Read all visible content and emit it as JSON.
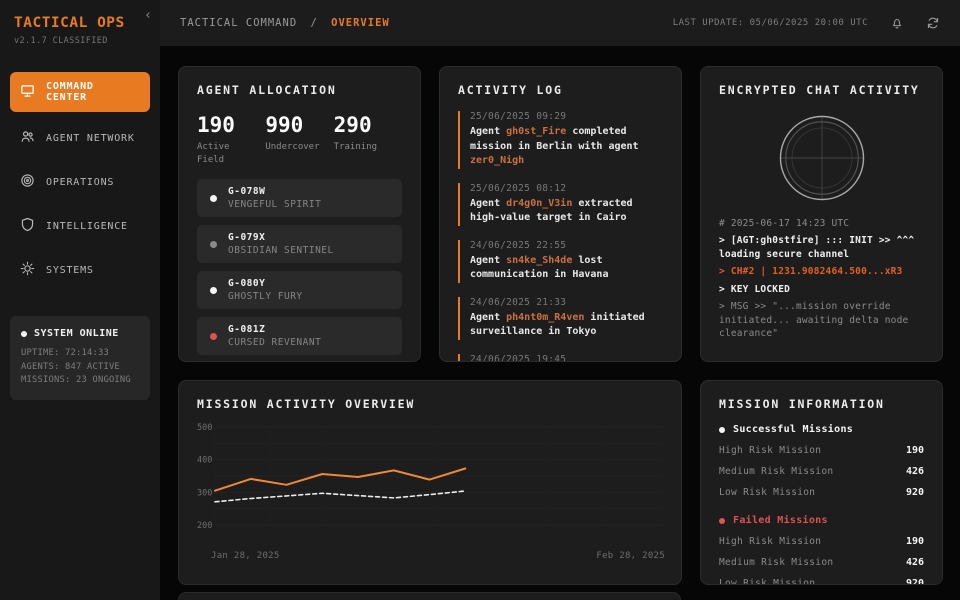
{
  "accent": "#e87a22",
  "sidebar": {
    "brand": "TACTICAL OPS",
    "version": "v2.1.7 CLASSIFIED",
    "collapse_icon": "‹",
    "items": [
      {
        "label": "COMMAND CENTER",
        "icon": "monitor-icon",
        "active": true
      },
      {
        "label": "AGENT NETWORK",
        "icon": "users-icon",
        "active": false
      },
      {
        "label": "OPERATIONS",
        "icon": "target-icon",
        "active": false
      },
      {
        "label": "INTELLIGENCE",
        "icon": "shield-icon",
        "active": false
      },
      {
        "label": "SYSTEMS",
        "icon": "gear-icon",
        "active": false
      }
    ],
    "system_status": {
      "title": "SYSTEM ONLINE",
      "status_color": "#f5f5f5",
      "lines": [
        "UPTIME: 72:14:33",
        "AGENTS: 847 ACTIVE",
        "MISSIONS: 23 ONGOING"
      ]
    }
  },
  "topbar": {
    "breadcrumb_root": "TACTICAL COMMAND",
    "breadcrumb_sep": "/",
    "breadcrumb_current": "OVERVIEW",
    "last_update": "LAST UPDATE: 05/06/2025 20:00 UTC",
    "icons": [
      "bell-icon",
      "refresh-icon"
    ]
  },
  "agent_allocation": {
    "title": "AGENT ALLOCATION",
    "stats": [
      {
        "value": "190",
        "label": "Active Field"
      },
      {
        "value": "990",
        "label": "Undercover"
      },
      {
        "value": "290",
        "label": "Training"
      }
    ],
    "agents": [
      {
        "code": "G-078W",
        "name": "VENGEFUL SPIRIT",
        "status_color": "#f5f5f5"
      },
      {
        "code": "G-079X",
        "name": "OBSIDIAN SENTINEL",
        "status_color": "#8a8a8a"
      },
      {
        "code": "G-080Y",
        "name": "GHOSTLY FURY",
        "status_color": "#f5f5f5"
      },
      {
        "code": "G-081Z",
        "name": "CURSED REVENANT",
        "status_color": "#e05252"
      }
    ]
  },
  "activity_log": {
    "title": "ACTIVITY LOG",
    "entries": [
      {
        "time": "25/06/2025 09:29",
        "s0": "Agent ",
        "a1": "gh0st_Fire",
        "s1": " completed mission in Berlin with agent ",
        "a2": "zer0_Nigh",
        "s2": ""
      },
      {
        "time": "25/06/2025 08:12",
        "s0": "Agent ",
        "a1": "dr4g0n_V3in",
        "s1": " extracted high-value target in Cairo",
        "a2": "",
        "s2": ""
      },
      {
        "time": "24/06/2025 22:55",
        "s0": "Agent ",
        "a1": "sn4ke_Sh4de",
        "s1": " lost communication in Havana",
        "a2": "",
        "s2": ""
      },
      {
        "time": "24/06/2025 21:33",
        "s0": "Agent ",
        "a1": "ph4nt0m_R4ven",
        "s1": " initiated surveillance in Tokyo",
        "a2": "",
        "s2": ""
      },
      {
        "time": "24/06/2025 19:45",
        "s0": "",
        "a1": "",
        "s1": "",
        "a2": "",
        "s2": ""
      }
    ]
  },
  "encrypted_chat": {
    "title": "ENCRYPTED CHAT ACTIVITY",
    "radar_icon": "radar-dial-icon",
    "lines": [
      {
        "style": "dim",
        "text": "# 2025-06-17 14:23 UTC"
      },
      {
        "style": "bright",
        "text": "> [AGT:gh0stfire] ::: INIT >> ^^^ loading secure channel"
      },
      {
        "style": "orange",
        "text": "> CH#2 | 1231.9082464.500...xR3"
      },
      {
        "style": "bright",
        "text": "> KEY LOCKED"
      },
      {
        "style": "dim",
        "text": "> MSG >> \"...mission override initiated... awaiting delta node clearance\""
      }
    ]
  },
  "chart_data": {
    "type": "line",
    "title": "MISSION ACTIVITY OVERVIEW",
    "xlabel": "",
    "ylabel": "",
    "x_start_label": "Jan 28, 2025",
    "x_end_label": "Feb 28, 2025",
    "ylim": [
      200,
      500
    ],
    "yticks": [
      200,
      300,
      400,
      500
    ],
    "grid": true,
    "legend": "none",
    "data_span_fraction": 0.56,
    "series": [
      {
        "name": "solid-orange",
        "color": "#ed8936",
        "dash": "",
        "width": 2,
        "values": [
          305,
          341,
          323,
          356,
          347,
          367,
          339,
          373
        ]
      },
      {
        "name": "dashed-white",
        "color": "#ececec",
        "dash": "4 3",
        "width": 1.6,
        "values": [
          271,
          281,
          289,
          297,
          290,
          283,
          293,
          304
        ]
      }
    ]
  },
  "mission_info": {
    "title": "MISSION INFORMATION",
    "groups": [
      {
        "header": "Successful Missions",
        "color": "#f5f5f5",
        "rows": [
          {
            "label": "High Risk Mission",
            "value": "190"
          },
          {
            "label": "Medium Risk Mission",
            "value": "426"
          },
          {
            "label": "Low Risk Mission",
            "value": "920"
          }
        ]
      },
      {
        "header": "Failed Missions",
        "color": "#e05252",
        "rows": [
          {
            "label": "High Risk Mission",
            "value": "190"
          },
          {
            "label": "Medium Risk Mission",
            "value": "426"
          },
          {
            "label": "Low Risk Mission",
            "value": "920"
          }
        ]
      }
    ]
  }
}
